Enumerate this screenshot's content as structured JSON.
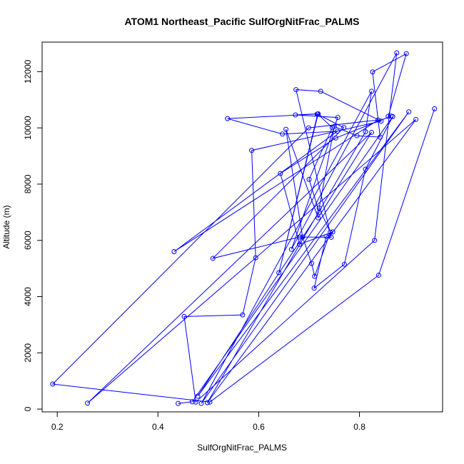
{
  "chart_data": {
    "type": "line",
    "title": "ATOM1 Northeast_Pacific SulfOrgNitFrac_PALMS",
    "xlabel": "SulfOrgNitFrac_PALMS",
    "ylabel": "Altitude (m)",
    "xlim": [
      0.17,
      0.965
    ],
    "ylim": [
      -100,
      13050
    ],
    "x_ticks": [
      0.2,
      0.4,
      0.6,
      0.8
    ],
    "x_tick_labels": [
      "0.2",
      "0.4",
      "0.6",
      "0.8"
    ],
    "y_ticks": [
      0,
      2000,
      4000,
      6000,
      8000,
      10000,
      12000
    ],
    "y_tick_labels": [
      "0",
      "2000",
      "4000",
      "6000",
      "8000",
      "10000",
      "12000"
    ],
    "grid": false,
    "series": [
      {
        "color": "#0000ff",
        "markers": "open-circle",
        "x": [
          0.949,
          0.838,
          0.503,
          0.191,
          0.699,
          0.837,
          0.432,
          0.756,
          0.647,
          0.538,
          0.716,
          0.769,
          0.509,
          0.681,
          0.744,
          0.674,
          0.723,
          0.843,
          0.586,
          0.594,
          0.568,
          0.452,
          0.475,
          0.83,
          0.874,
          0.665,
          0.757,
          0.673,
          0.718,
          0.64,
          0.717,
          0.746,
          0.7,
          0.72,
          0.479,
          0.898,
          0.486,
          0.824,
          0.812,
          0.498,
          0.912,
          0.26,
          0.824,
          0.718,
          0.654,
          0.687,
          0.705,
          0.711,
          0.742,
          0.72,
          0.75,
          0.795,
          0.841,
          0.826,
          0.893,
          0.857,
          0.863,
          0.753,
          0.643,
          0.681,
          0.747,
          0.734,
          0.71,
          0.77,
          0.812,
          0.866,
          0.468,
          0.44
        ],
        "y": [
          10680,
          4760,
          250,
          890,
          10000,
          10280,
          5600,
          9880,
          9780,
          10330,
          10490,
          10010,
          5360,
          6120,
          6110,
          11360,
          11300,
          10240,
          9200,
          5380,
          3350,
          3290,
          250,
          6000,
          12670,
          5680,
          10370,
          10460,
          10500,
          4850,
          10490,
          10010,
          8170,
          7000,
          460,
          10570,
          200,
          11300,
          9860,
          230,
          10300,
          210,
          9840,
          6800,
          9950,
          6120,
          5180,
          4720,
          6290,
          7150,
          10050,
          9720,
          9670,
          11990,
          12640,
          10410,
          10420,
          9640,
          8380,
          5860,
          6300,
          6140,
          4300,
          5150,
          8530,
          10400,
          260,
          200
        ]
      }
    ]
  }
}
